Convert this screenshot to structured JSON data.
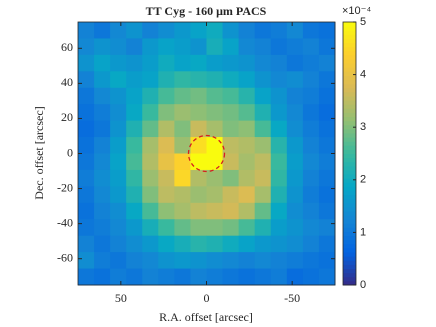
{
  "chart_data": {
    "type": "heatmap",
    "title": "TT Cyg - 160 μm PACS",
    "xlabel": "R.A. offset [arcsec]",
    "ylabel": "Dec. offset [arcsec]",
    "xlim": [
      75,
      -75
    ],
    "ylim": [
      -75,
      75
    ],
    "xticks": [
      50,
      0,
      -50
    ],
    "yticks": [
      -60,
      -40,
      -20,
      0,
      20,
      40,
      60
    ],
    "colormap": "parula",
    "clim": [
      0,
      5
    ],
    "cticks": [
      0,
      1,
      2,
      3,
      4,
      5
    ],
    "colorbar_scale": "×10⁻⁴",
    "z": [
      [
        1.2,
        1.0,
        1.3,
        1.5,
        1.2,
        1.4,
        1.6,
        1.8,
        2.0,
        1.5,
        1.2,
        1.0,
        1.1,
        1.3,
        1.0,
        0.9
      ],
      [
        1.3,
        1.5,
        1.4,
        1.2,
        1.6,
        1.8,
        1.7,
        1.5,
        2.1,
        1.8,
        1.3,
        1.2,
        1.0,
        1.1,
        1.2,
        1.0
      ],
      [
        1.5,
        1.8,
        1.6,
        1.5,
        1.7,
        2.0,
        1.8,
        1.9,
        1.7,
        1.6,
        1.5,
        1.3,
        1.2,
        1.0,
        1.1,
        1.2
      ],
      [
        1.2,
        1.6,
        1.9,
        1.7,
        1.8,
        2.2,
        2.4,
        2.3,
        2.2,
        2.0,
        1.8,
        1.5,
        1.3,
        1.4,
        1.2,
        1.0
      ],
      [
        1.0,
        1.3,
        1.5,
        1.8,
        2.2,
        2.6,
        2.8,
        2.9,
        2.7,
        2.6,
        2.3,
        1.8,
        1.5,
        1.2,
        1.1,
        0.9
      ],
      [
        0.9,
        1.1,
        1.4,
        1.9,
        2.5,
        3.0,
        3.2,
        3.1,
        3.0,
        2.9,
        2.7,
        2.2,
        1.6,
        1.3,
        1.0,
        0.8
      ],
      [
        0.8,
        1.0,
        1.5,
        2.2,
        2.8,
        3.4,
        3.0,
        3.6,
        3.3,
        3.0,
        3.1,
        2.6,
        1.9,
        1.4,
        1.1,
        0.9
      ],
      [
        0.9,
        1.2,
        1.7,
        2.5,
        3.3,
        3.8,
        3.2,
        4.6,
        5.0,
        3.5,
        3.4,
        3.2,
        2.3,
        1.6,
        1.2,
        1.0
      ],
      [
        1.0,
        1.3,
        1.8,
        2.6,
        3.4,
        4.0,
        4.4,
        5.0,
        5.0,
        3.6,
        3.3,
        3.5,
        2.5,
        1.7,
        1.3,
        1.1
      ],
      [
        1.1,
        1.4,
        1.7,
        2.4,
        3.2,
        3.6,
        4.5,
        3.4,
        3.2,
        3.0,
        3.4,
        3.6,
        2.4,
        1.6,
        1.2,
        1.0
      ],
      [
        1.0,
        1.3,
        1.6,
        2.2,
        3.0,
        3.5,
        3.4,
        3.2,
        3.3,
        3.6,
        3.8,
        3.3,
        2.2,
        1.5,
        1.1,
        0.9
      ],
      [
        0.9,
        1.2,
        1.4,
        1.9,
        2.6,
        3.1,
        3.3,
        3.5,
        3.6,
        3.7,
        3.4,
        2.8,
        1.9,
        1.4,
        1.2,
        1.0
      ],
      [
        1.0,
        1.1,
        1.3,
        1.6,
        2.1,
        2.5,
        2.8,
        3.0,
        3.0,
        2.9,
        2.6,
        2.2,
        1.7,
        1.5,
        1.3,
        1.2
      ],
      [
        1.2,
        1.0,
        1.2,
        1.4,
        1.6,
        1.9,
        2.1,
        2.3,
        2.2,
        2.0,
        1.8,
        1.6,
        1.5,
        1.4,
        1.2,
        1.0
      ],
      [
        1.4,
        1.1,
        1.0,
        1.2,
        1.3,
        1.5,
        1.6,
        1.5,
        1.4,
        1.3,
        1.2,
        1.3,
        1.2,
        1.1,
        1.0,
        0.9
      ],
      [
        1.0,
        0.9,
        1.1,
        1.0,
        1.2,
        1.1,
        1.0,
        1.2,
        1.1,
        1.0,
        0.9,
        1.0,
        1.1,
        0.8,
        0.9,
        1.0
      ]
    ]
  }
}
